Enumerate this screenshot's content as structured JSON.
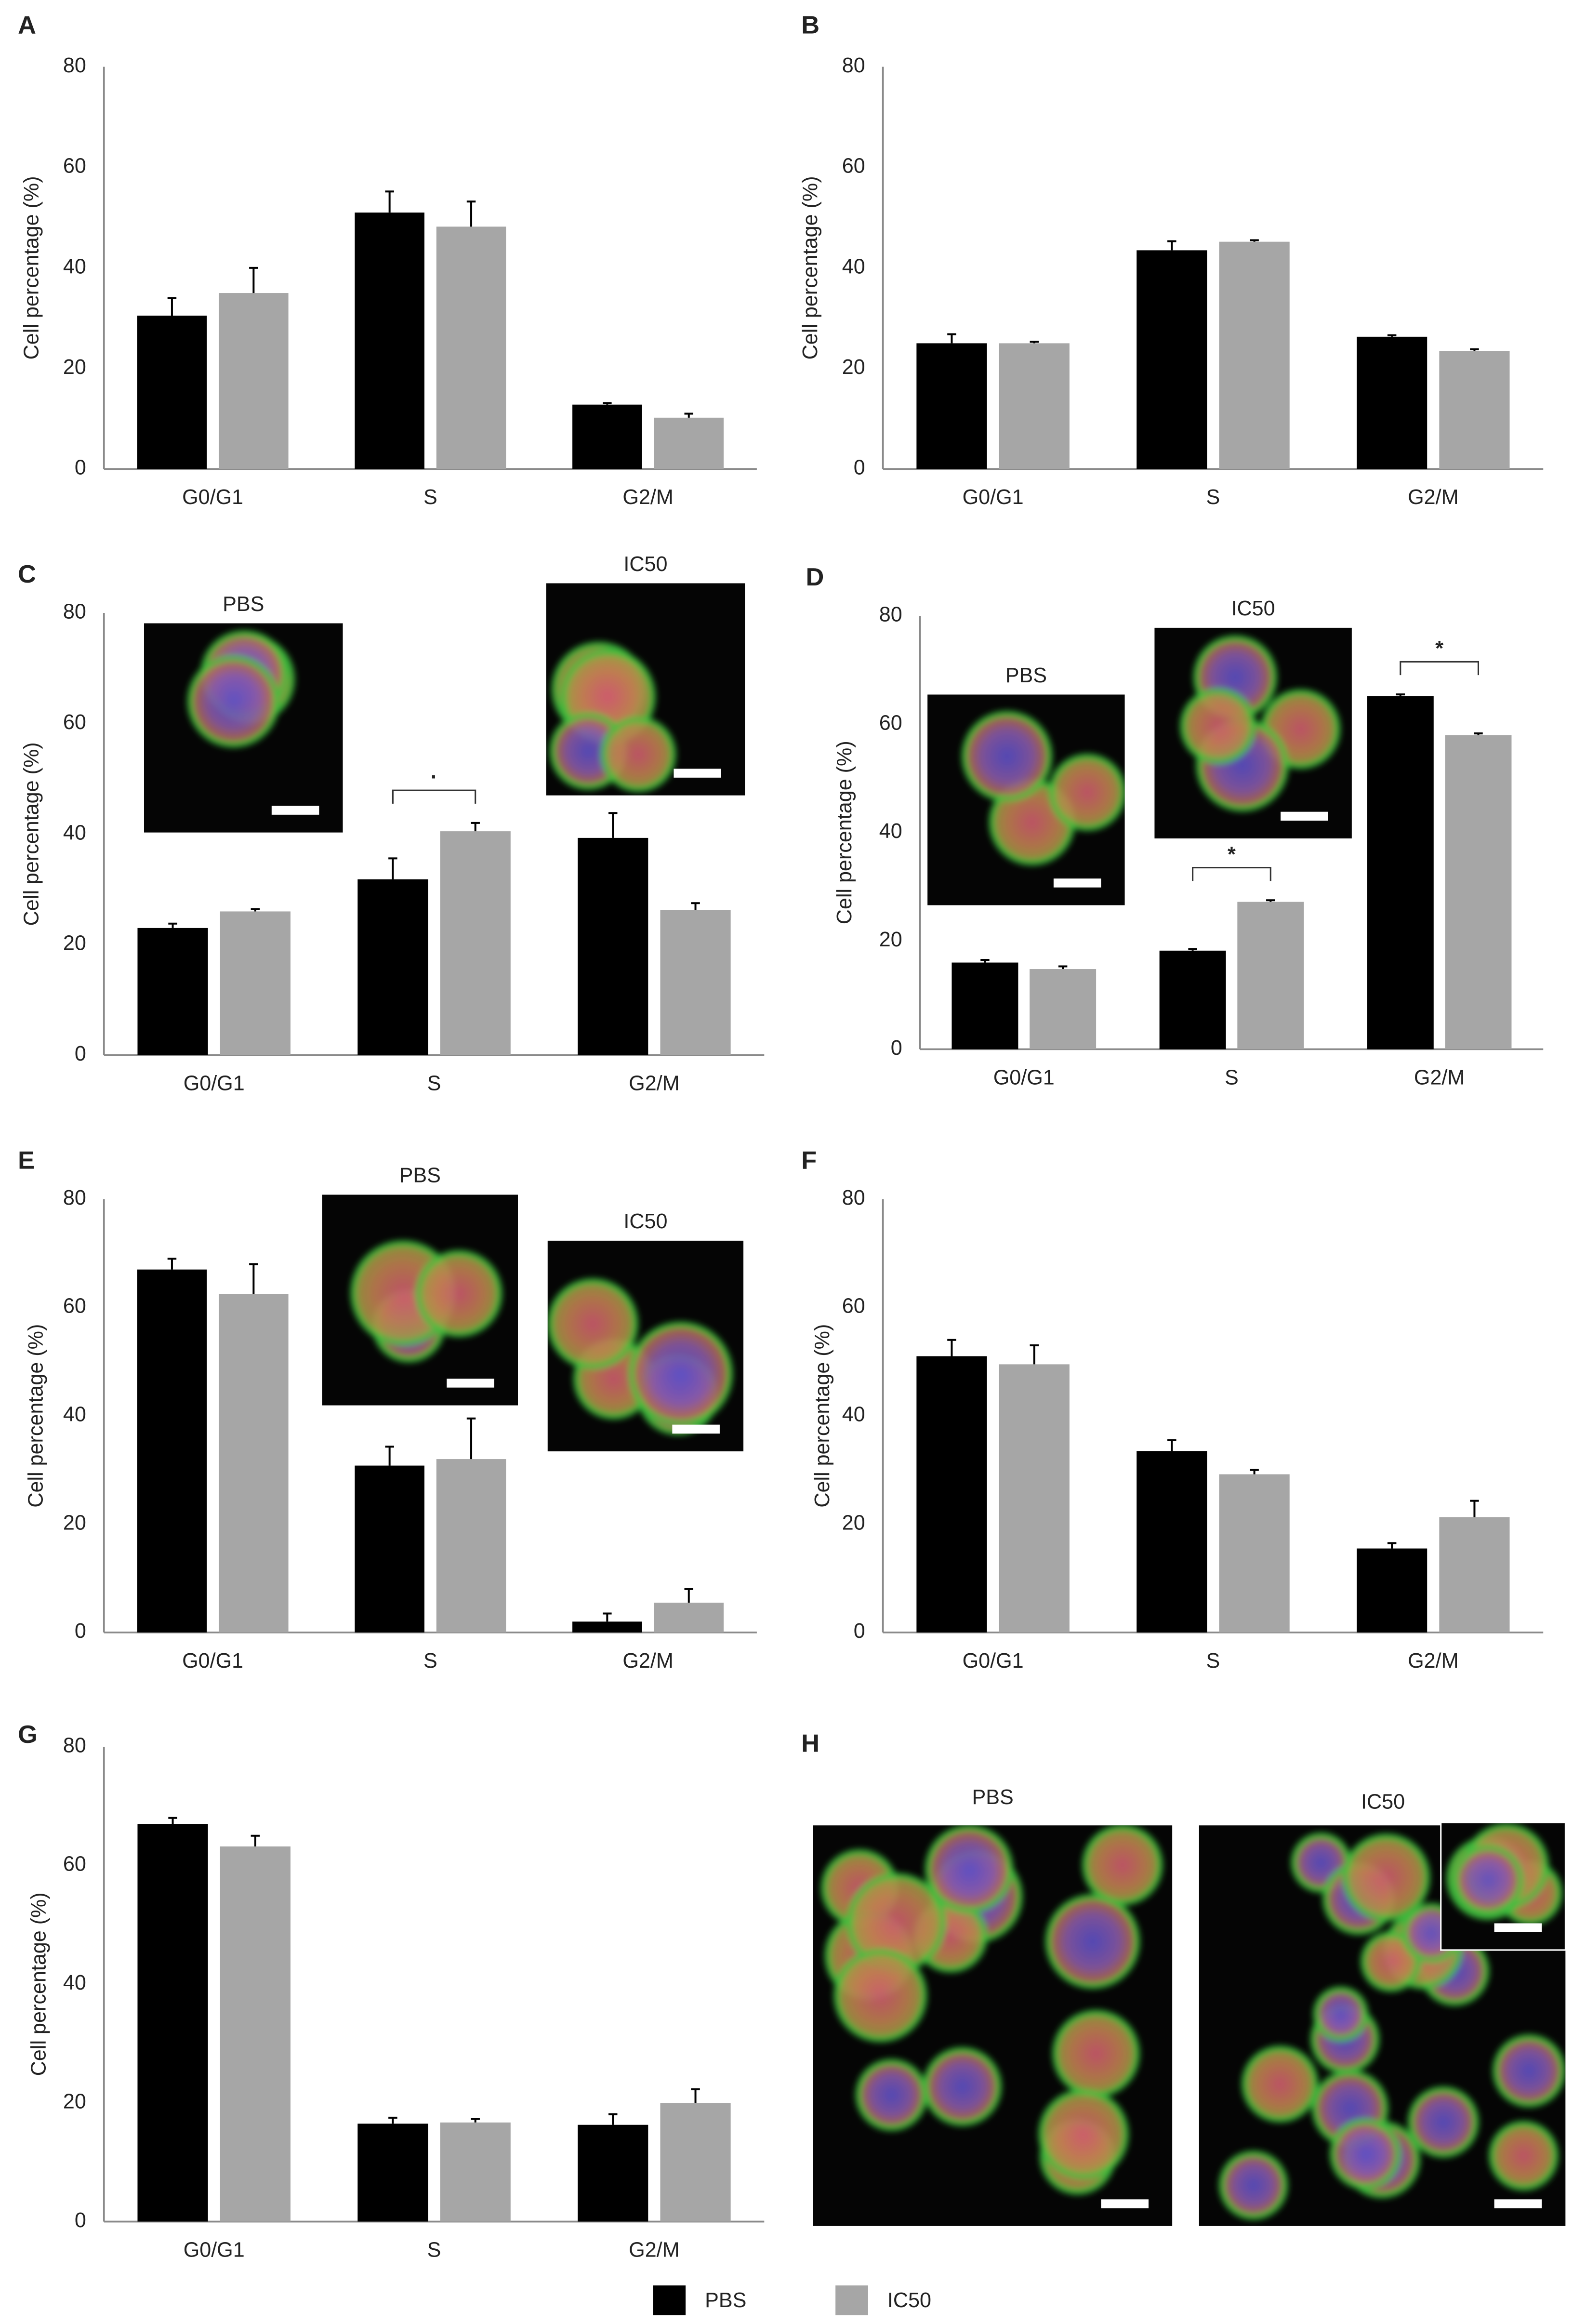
{
  "chart_data": [
    {
      "type": "bar",
      "panel": "A",
      "ylabel": "Cell percentage (%)",
      "categories": [
        "G0/G1",
        "S",
        "G2/M"
      ],
      "series": [
        {
          "name": "PBS",
          "color": "#000000",
          "values": [
            30.5,
            51,
            12.8
          ],
          "errors": [
            3.5,
            4.2,
            0.3
          ]
        },
        {
          "name": "IC50",
          "color": "#a6a6a6",
          "values": [
            35,
            48.2,
            10.2
          ],
          "errors": [
            5,
            5,
            0.8
          ]
        }
      ],
      "ylim": [
        0,
        80
      ],
      "yticks": [
        0,
        20,
        40,
        60,
        80
      ]
    },
    {
      "type": "bar",
      "panel": "B",
      "ylabel": "Cell percentage (%)",
      "categories": [
        "G0/G1",
        "S",
        "G2/M"
      ],
      "series": [
        {
          "color": "#000000",
          "values": [
            25,
            43.5,
            26.3
          ],
          "errors": [
            1.8,
            1.8,
            0.3
          ]
        },
        {
          "color": "#a6a6a6",
          "values": [
            25,
            45.2,
            23.5
          ],
          "errors": [
            0.3,
            0.3,
            0.3
          ]
        }
      ],
      "ylim": [
        0,
        80
      ],
      "yticks": [
        0,
        20,
        40,
        60,
        80
      ]
    },
    {
      "type": "bar",
      "panel": "C",
      "ylabel": "Cell percentage (%)",
      "categories": [
        "G0/G1",
        "S",
        "G2/M"
      ],
      "series": [
        {
          "color": "#000000",
          "values": [
            23,
            31.8,
            39.3
          ],
          "errors": [
            0.8,
            3.8,
            4.5
          ]
        },
        {
          "color": "#a6a6a6",
          "values": [
            26,
            40.5,
            26.3
          ],
          "errors": [
            0.4,
            1.5,
            1.2
          ]
        }
      ],
      "ylim": [
        0,
        80
      ],
      "yticks": [
        0,
        20,
        40,
        60,
        80
      ],
      "annotations": [
        {
          "text": "·",
          "category": "S"
        }
      ],
      "insets": [
        "PBS",
        "IC50"
      ]
    },
    {
      "type": "bar",
      "panel": "D",
      "ylabel": "Cell percentage (%)",
      "categories": [
        "G0/G1",
        "S",
        "G2/M"
      ],
      "series": [
        {
          "color": "#000000",
          "values": [
            16,
            18.2,
            65.2
          ],
          "errors": [
            0.5,
            0.3,
            0.3
          ]
        },
        {
          "color": "#a6a6a6",
          "values": [
            14.8,
            27.2,
            58
          ],
          "errors": [
            0.5,
            0.3,
            0.3
          ]
        }
      ],
      "ylim": [
        0,
        80
      ],
      "yticks": [
        0,
        20,
        40,
        60,
        80
      ],
      "annotations": [
        {
          "text": "*",
          "category": "S"
        },
        {
          "text": "*",
          "category": "G2/M"
        }
      ],
      "insets": [
        "PBS",
        "IC50"
      ]
    },
    {
      "type": "bar",
      "panel": "E",
      "ylabel": "Cell percentage (%)",
      "categories": [
        "G0/G1",
        "S",
        "G2/M"
      ],
      "series": [
        {
          "color": "#000000",
          "values": [
            67,
            30.8,
            2
          ],
          "errors": [
            2,
            3.5,
            1.5
          ]
        },
        {
          "color": "#a6a6a6",
          "values": [
            62.5,
            32,
            5.5
          ],
          "errors": [
            5.5,
            7.5,
            2.5
          ]
        }
      ],
      "ylim": [
        0,
        80
      ],
      "yticks": [
        0,
        20,
        40,
        60,
        80
      ],
      "insets": [
        "PBS",
        "IC50"
      ]
    },
    {
      "type": "bar",
      "panel": "F",
      "ylabel": "Cell percentage (%)",
      "categories": [
        "G0/G1",
        "S",
        "G2/M"
      ],
      "series": [
        {
          "color": "#000000",
          "values": [
            51,
            33.5,
            15.5
          ],
          "errors": [
            3,
            2,
            1
          ]
        },
        {
          "color": "#a6a6a6",
          "values": [
            49.5,
            29.2,
            21.3
          ],
          "errors": [
            3.5,
            0.8,
            3
          ]
        }
      ],
      "ylim": [
        0,
        80
      ],
      "yticks": [
        0,
        20,
        40,
        60,
        80
      ]
    },
    {
      "type": "bar",
      "panel": "G",
      "ylabel": "Cell percentage (%)",
      "categories": [
        "G0/G1",
        "S",
        "G2/M"
      ],
      "series": [
        {
          "color": "#000000",
          "values": [
            67,
            16.5,
            16.3
          ],
          "errors": [
            1,
            1,
            1.8
          ]
        },
        {
          "color": "#a6a6a6",
          "values": [
            63.2,
            16.7,
            20
          ],
          "errors": [
            1.8,
            0.6,
            2.3
          ]
        }
      ],
      "ylim": [
        0,
        80
      ],
      "yticks": [
        0,
        20,
        40,
        60,
        80
      ]
    }
  ],
  "panel_h": {
    "panel": "H",
    "labels": [
      "PBS",
      "IC50"
    ]
  }
}
